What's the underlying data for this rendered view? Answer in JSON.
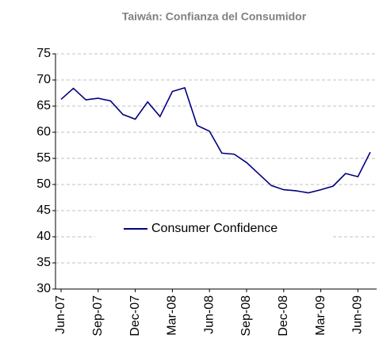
{
  "chart_data": {
    "type": "line",
    "title": "Taiwán: Confianza del Consumidor",
    "categories": [
      "Jun-07",
      null,
      null,
      "Sep-07",
      null,
      null,
      "Dec-07",
      null,
      null,
      "Mar-08",
      null,
      null,
      "Jun-08",
      null,
      null,
      "Sep-08",
      null,
      null,
      "Dec-08",
      null,
      null,
      "Mar-09",
      null,
      null,
      "Jun-09",
      null
    ],
    "series": [
      {
        "name": "Consumer Confidence",
        "color": "#000080",
        "values": [
          66.3,
          68.4,
          66.2,
          66.5,
          66,
          63.4,
          62.5,
          65.8,
          63,
          67.8,
          68.5,
          61.3,
          60.2,
          56,
          55.8,
          54.2,
          52,
          49.8,
          49,
          48.8,
          48.4,
          49,
          49.7,
          52.1,
          51.5,
          56.2
        ]
      }
    ],
    "ylim": [
      30,
      75
    ],
    "yticks": [
      30,
      35,
      40,
      45,
      50,
      55,
      60,
      65,
      70,
      75
    ],
    "grid": true,
    "legend": "center"
  }
}
